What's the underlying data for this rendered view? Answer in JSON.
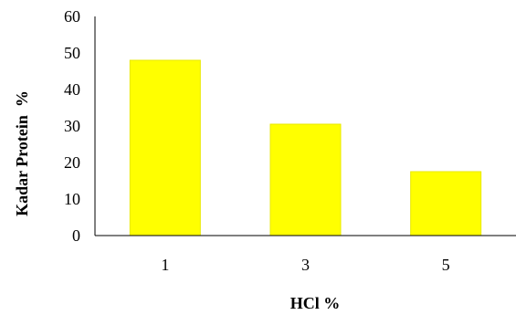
{
  "chart_data": {
    "type": "bar",
    "title": "",
    "xlabel": "HCl %",
    "ylabel": "Kadar Protein  %",
    "categories": [
      "1",
      "3",
      "5"
    ],
    "values": [
      48,
      30.5,
      17.5
    ],
    "ylim": [
      0,
      60
    ],
    "yticks": [
      "0",
      "10",
      "20",
      "30",
      "40",
      "50",
      "60"
    ],
    "grid": false,
    "legend": "none",
    "colors": {
      "bar": "#ffff00",
      "bar_edge": "#e8e800",
      "axis": "#000000",
      "text": "#000000",
      "background": "#ffffff"
    }
  }
}
